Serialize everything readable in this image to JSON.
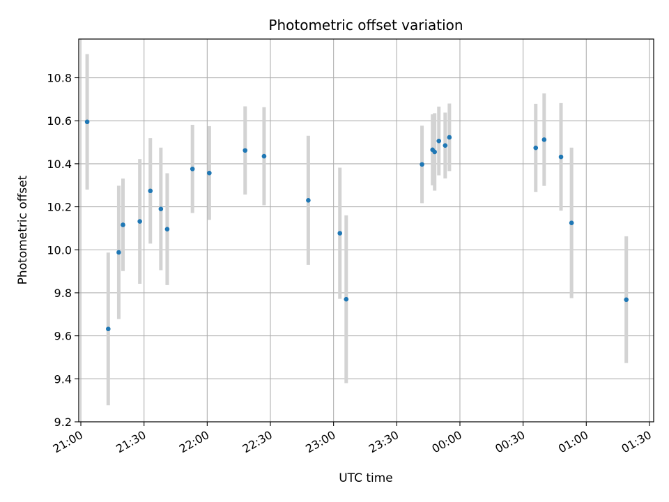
{
  "chart_data": {
    "type": "scatter",
    "title": "Photometric offset variation",
    "xlabel": "UTC time",
    "ylabel": "Photometric offset",
    "x_ticks": [
      "21:00",
      "21:30",
      "22:00",
      "22:30",
      "23:00",
      "23:30",
      "00:00",
      "00:30",
      "01:00",
      "01:30"
    ],
    "y_ticks": [
      "9.2",
      "9.4",
      "9.6",
      "9.8",
      "10.0",
      "10.2",
      "10.4",
      "10.6",
      "10.8"
    ],
    "xlim": [
      "20:59",
      "01:32"
    ],
    "ylim": [
      9.2,
      10.98
    ],
    "grid": true,
    "error_bar_color": "#d3d3d3",
    "marker_color": "#1f77b4",
    "points": [
      {
        "x": "21:03",
        "y": 10.595,
        "err": 0.315
      },
      {
        "x": "21:13",
        "y": 9.632,
        "err": 0.355
      },
      {
        "x": "21:18",
        "y": 9.988,
        "err": 0.31
      },
      {
        "x": "21:20",
        "y": 10.116,
        "err": 0.215
      },
      {
        "x": "21:28",
        "y": 10.132,
        "err": 0.29
      },
      {
        "x": "21:33",
        "y": 10.274,
        "err": 0.245
      },
      {
        "x": "21:38",
        "y": 10.19,
        "err": 0.285
      },
      {
        "x": "21:41",
        "y": 10.096,
        "err": 0.26
      },
      {
        "x": "21:53",
        "y": 10.376,
        "err": 0.205
      },
      {
        "x": "22:01",
        "y": 10.357,
        "err": 0.218
      },
      {
        "x": "22:18",
        "y": 10.462,
        "err": 0.205
      },
      {
        "x": "22:27",
        "y": 10.435,
        "err": 0.228
      },
      {
        "x": "22:48",
        "y": 10.23,
        "err": 0.3
      },
      {
        "x": "23:03",
        "y": 10.077,
        "err": 0.305
      },
      {
        "x": "23:06",
        "y": 9.77,
        "err": 0.39
      },
      {
        "x": "23:42",
        "y": 10.397,
        "err": 0.18
      },
      {
        "x": "23:47",
        "y": 10.465,
        "err": 0.165
      },
      {
        "x": "23:48",
        "y": 10.455,
        "err": 0.18
      },
      {
        "x": "23:50",
        "y": 10.506,
        "err": 0.16
      },
      {
        "x": "23:53",
        "y": 10.485,
        "err": 0.153
      },
      {
        "x": "23:55",
        "y": 10.523,
        "err": 0.157
      },
      {
        "x": "00:36",
        "y": 10.474,
        "err": 0.205
      },
      {
        "x": "00:40",
        "y": 10.512,
        "err": 0.215
      },
      {
        "x": "00:48",
        "y": 10.432,
        "err": 0.25
      },
      {
        "x": "00:53",
        "y": 10.125,
        "err": 0.35
      },
      {
        "x": "01:19",
        "y": 9.768,
        "err": 0.295
      }
    ]
  }
}
